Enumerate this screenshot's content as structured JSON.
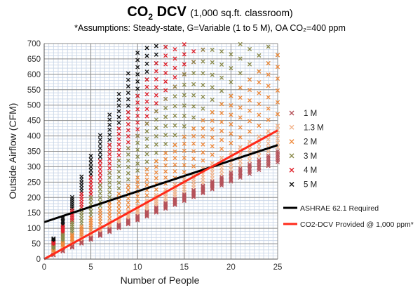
{
  "chart_data": {
    "type": "scatter",
    "title_main": "CO",
    "title_sub": "2",
    "title_main_suffix": " DCV",
    "title_note": "(1,000 sq.ft. classroom)",
    "subtitle": "*Assumptions: Steady-state, G=Variable (1 to 5 M), OA CO₂=400 ppm",
    "xlabel": "Number of People",
    "ylabel": "Outside Airflow (CFM)",
    "xlim": [
      0,
      25
    ],
    "ylim": [
      0,
      700
    ],
    "xticks": [
      0,
      5,
      10,
      15,
      20,
      25
    ],
    "yticks": [
      0,
      50,
      100,
      150,
      200,
      250,
      300,
      350,
      400,
      450,
      500,
      550,
      600,
      650,
      700
    ],
    "grid": true,
    "legend_position": "right",
    "marker_series": [
      {
        "name": "1 M",
        "color": "#b5525a",
        "slope": 14.0
      },
      {
        "name": "1.3 M",
        "color": "#f2b48c",
        "slope": 17.3
      },
      {
        "name": "2 M",
        "color": "#ef8a3c",
        "slope": 26.5
      },
      {
        "name": "3 M",
        "color": "#8a8a4a",
        "slope": 40.0
      },
      {
        "name": "4 M",
        "color": "#e0202a",
        "slope": 53.0
      },
      {
        "name": "5 M",
        "color": "#111111",
        "slope": 67.0
      }
    ],
    "line_series": [
      {
        "name": "ASHRAE 62.1 Required",
        "color": "#000000",
        "x": [
          0,
          25
        ],
        "y": [
          120,
          370
        ]
      },
      {
        "name": "CO2-DCV Provided @ 1,000 ppm*",
        "color": "#ff2a1a",
        "x": [
          0,
          25
        ],
        "y": [
          0,
          418
        ]
      }
    ]
  }
}
